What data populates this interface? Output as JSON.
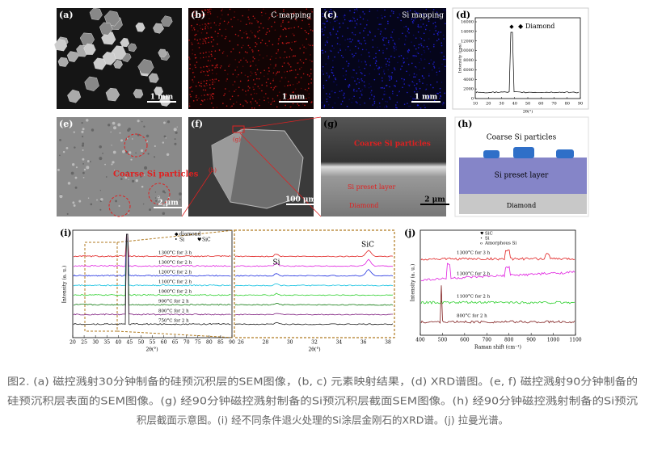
{
  "panels": {
    "a": {
      "label": "(a)",
      "scale": "1 mm"
    },
    "b": {
      "label": "(b)",
      "title": "C mapping",
      "scale": "1 mm"
    },
    "c": {
      "label": "(c)",
      "title": "Si mapping",
      "scale": "1 mm"
    },
    "d": {
      "label": "(d)",
      "legend": "Diamond",
      "y_label": "Intensity (cps)",
      "x_label": "2θ(°)",
      "xticks": [
        10,
        20,
        30,
        40,
        50,
        60,
        70,
        80,
        90
      ],
      "yticks": [
        0,
        2000,
        4000,
        6000,
        8000,
        10000,
        12000,
        14000,
        16000
      ]
    },
    "e": {
      "label": "(e)",
      "annotation": "Coarse Si particles",
      "scale": "2 μm"
    },
    "f": {
      "label": "(f)",
      "marks": [
        "(g)",
        "(h)"
      ],
      "scale": "100 μm"
    },
    "g": {
      "label": "(g)",
      "annotations": [
        "Coarse Si particles",
        "Si preset layer",
        "Diamond"
      ],
      "scale": "2 μm"
    },
    "h": {
      "label": "(h)",
      "annotations": [
        "Coarse Si particles",
        "Si preset layer",
        "Diamond"
      ]
    },
    "i": {
      "label": "(i)",
      "legend": [
        "diamond",
        "Si",
        "SiC"
      ],
      "curves": [
        "1300°C for 3 h",
        "1300°C for 2 h",
        "1200°C for 2 h",
        "1100°C for 2 h",
        "1000°C for 2 h",
        "900°C for 2 h",
        "800°C for 2 h",
        "750°C for 2 h"
      ],
      "inset_annotations": [
        "SiC",
        "Si"
      ],
      "y_label": "Intensity (a. u.)",
      "x_label": "2θ(°)",
      "xticks": [
        20,
        25,
        30,
        35,
        40,
        45,
        50,
        55,
        60,
        65,
        70,
        75,
        80,
        85,
        90
      ],
      "inset_xticks": [
        26,
        28,
        30,
        32,
        34,
        36,
        38
      ],
      "inset_x_label": "2θ(°)"
    },
    "j": {
      "label": "(j)",
      "legend": [
        "SiC",
        "Si",
        "Amorphous Si"
      ],
      "curves": [
        "1300°C for 3 h",
        "1300°C for 2 h",
        "1100°C for 2 h",
        "800°C for 2 h"
      ],
      "y_label": "Intensity (a. u.)",
      "x_label": "Raman shift (cm⁻¹)",
      "xticks": [
        400,
        500,
        600,
        700,
        800,
        900,
        1000,
        1100
      ]
    }
  },
  "caption": [
    "图2. (a) 磁控溅射30分钟制备的硅预沉积层的SEM图像，(b, c) 元素映射结果，(d) XRD谱图。(e, f) 磁控溅射90分钟制备的",
    "硅预沉积层表面的SEM图像。(g) 经90分钟磁控溅射制备的Si预沉积层截面SEM图像。(h) 经90分钟磁控溅射制备的Si预沉",
    "积层截面示意图。(i) 经不同条件退火处理的Si涂层金刚石的XRD谱。(j) 拉曼光谱。"
  ]
}
